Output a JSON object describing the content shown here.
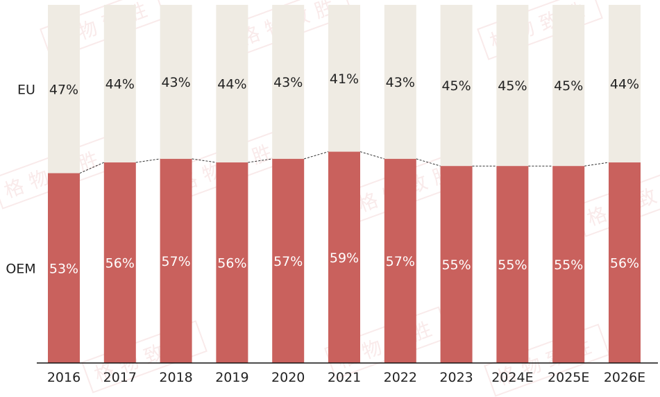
{
  "chart_data": {
    "type": "bar",
    "stacked": true,
    "percent": true,
    "categories": [
      "2016",
      "2017",
      "2018",
      "2019",
      "2020",
      "2021",
      "2022",
      "2023",
      "2024E",
      "2025E",
      "2026E"
    ],
    "series": [
      {
        "name": "OEM",
        "values": [
          53,
          56,
          57,
          56,
          57,
          59,
          57,
          55,
          55,
          55,
          56
        ],
        "color": "#c9615d",
        "label_color": "#ffffff"
      },
      {
        "name": "EU",
        "values": [
          47,
          44,
          43,
          44,
          43,
          41,
          43,
          45,
          45,
          45,
          44
        ],
        "color": "#efebe3",
        "label_color": "#222222"
      }
    ],
    "value_suffix": "%",
    "ylim": [
      0,
      100
    ],
    "connector_lines": "dashed",
    "grid": false,
    "legend": "left"
  },
  "watermark": "格物致胜"
}
